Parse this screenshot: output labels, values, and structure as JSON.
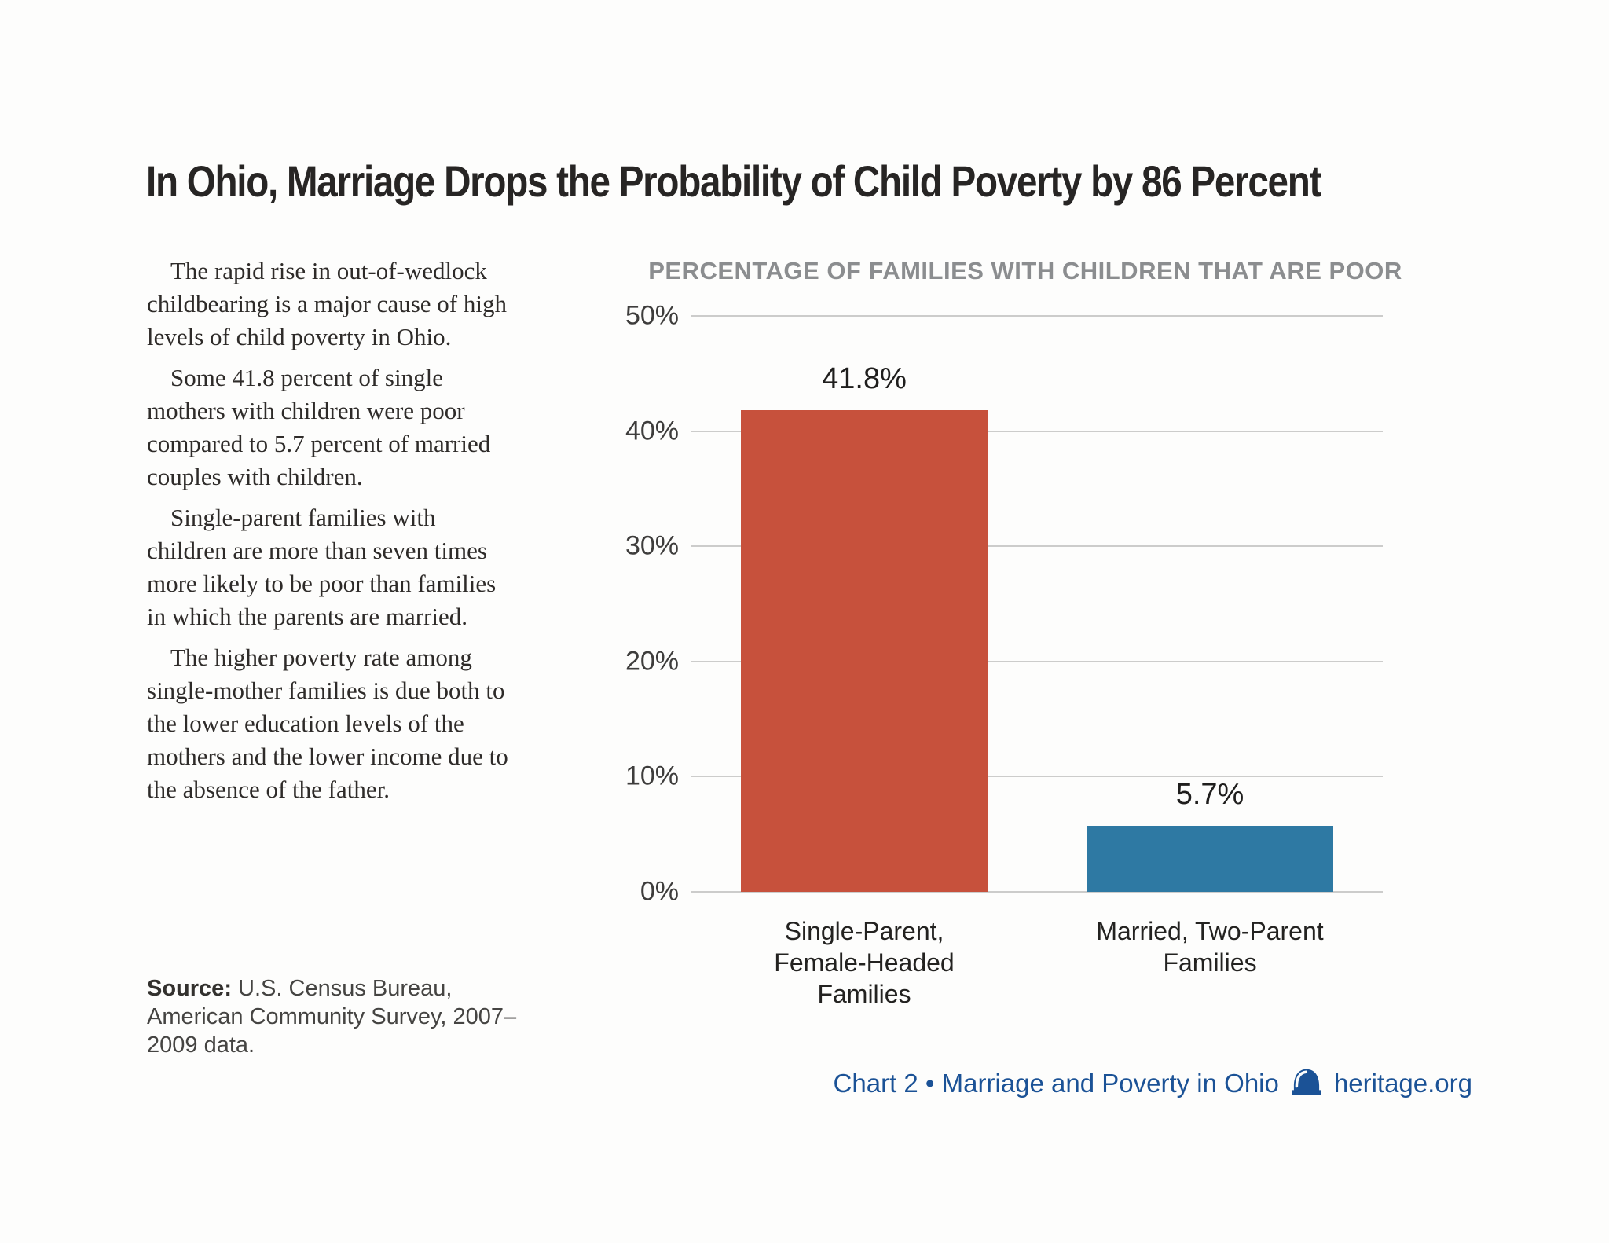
{
  "page": {
    "background": "#fdfdfc"
  },
  "headline": "In Ohio, Marriage Drops the Probability of Child Poverty by 86 Percent",
  "paragraphs": [
    "The rapid rise in out-of-wedlock childbearing is a major cause of high levels of child poverty in Ohio.",
    "Some 41.8 percent of single mothers with children were poor compared to 5.7 percent of married couples with children.",
    "Single-parent families with children are more than seven times more likely to be poor than families in which the parents are married.",
    "The higher poverty rate among single-mother families is due both to the lower education levels of the mothers and the lower income due to the absence of the father."
  ],
  "source": {
    "label": "Source:",
    "text": " U.S. Census Bureau, American Community Survey, 2007–2009 data."
  },
  "chart_data": {
    "type": "bar",
    "title": "PERCENTAGE OF FAMILIES WITH CHILDREN THAT ARE POOR",
    "categories": [
      "Single-Parent,\nFemale-Headed\nFamilies",
      "Married, Two-Parent\nFamilies"
    ],
    "values": [
      41.8,
      5.7
    ],
    "value_labels": [
      "41.8%",
      "5.7%"
    ],
    "bar_colors": [
      "#c7513c",
      "#2e79a3"
    ],
    "ylim": [
      0,
      50
    ],
    "ytick_labels": [
      "0%",
      "10%",
      "20%",
      "30%",
      "40%",
      "50%"
    ],
    "grid": true,
    "legend": "none",
    "xlabel": "",
    "ylabel": ""
  },
  "footer": {
    "text": "Chart 2 • Marriage and Poverty in Ohio",
    "site": "heritage.org",
    "icon": "liberty-bell-icon",
    "accent_color": "#1b5296"
  }
}
